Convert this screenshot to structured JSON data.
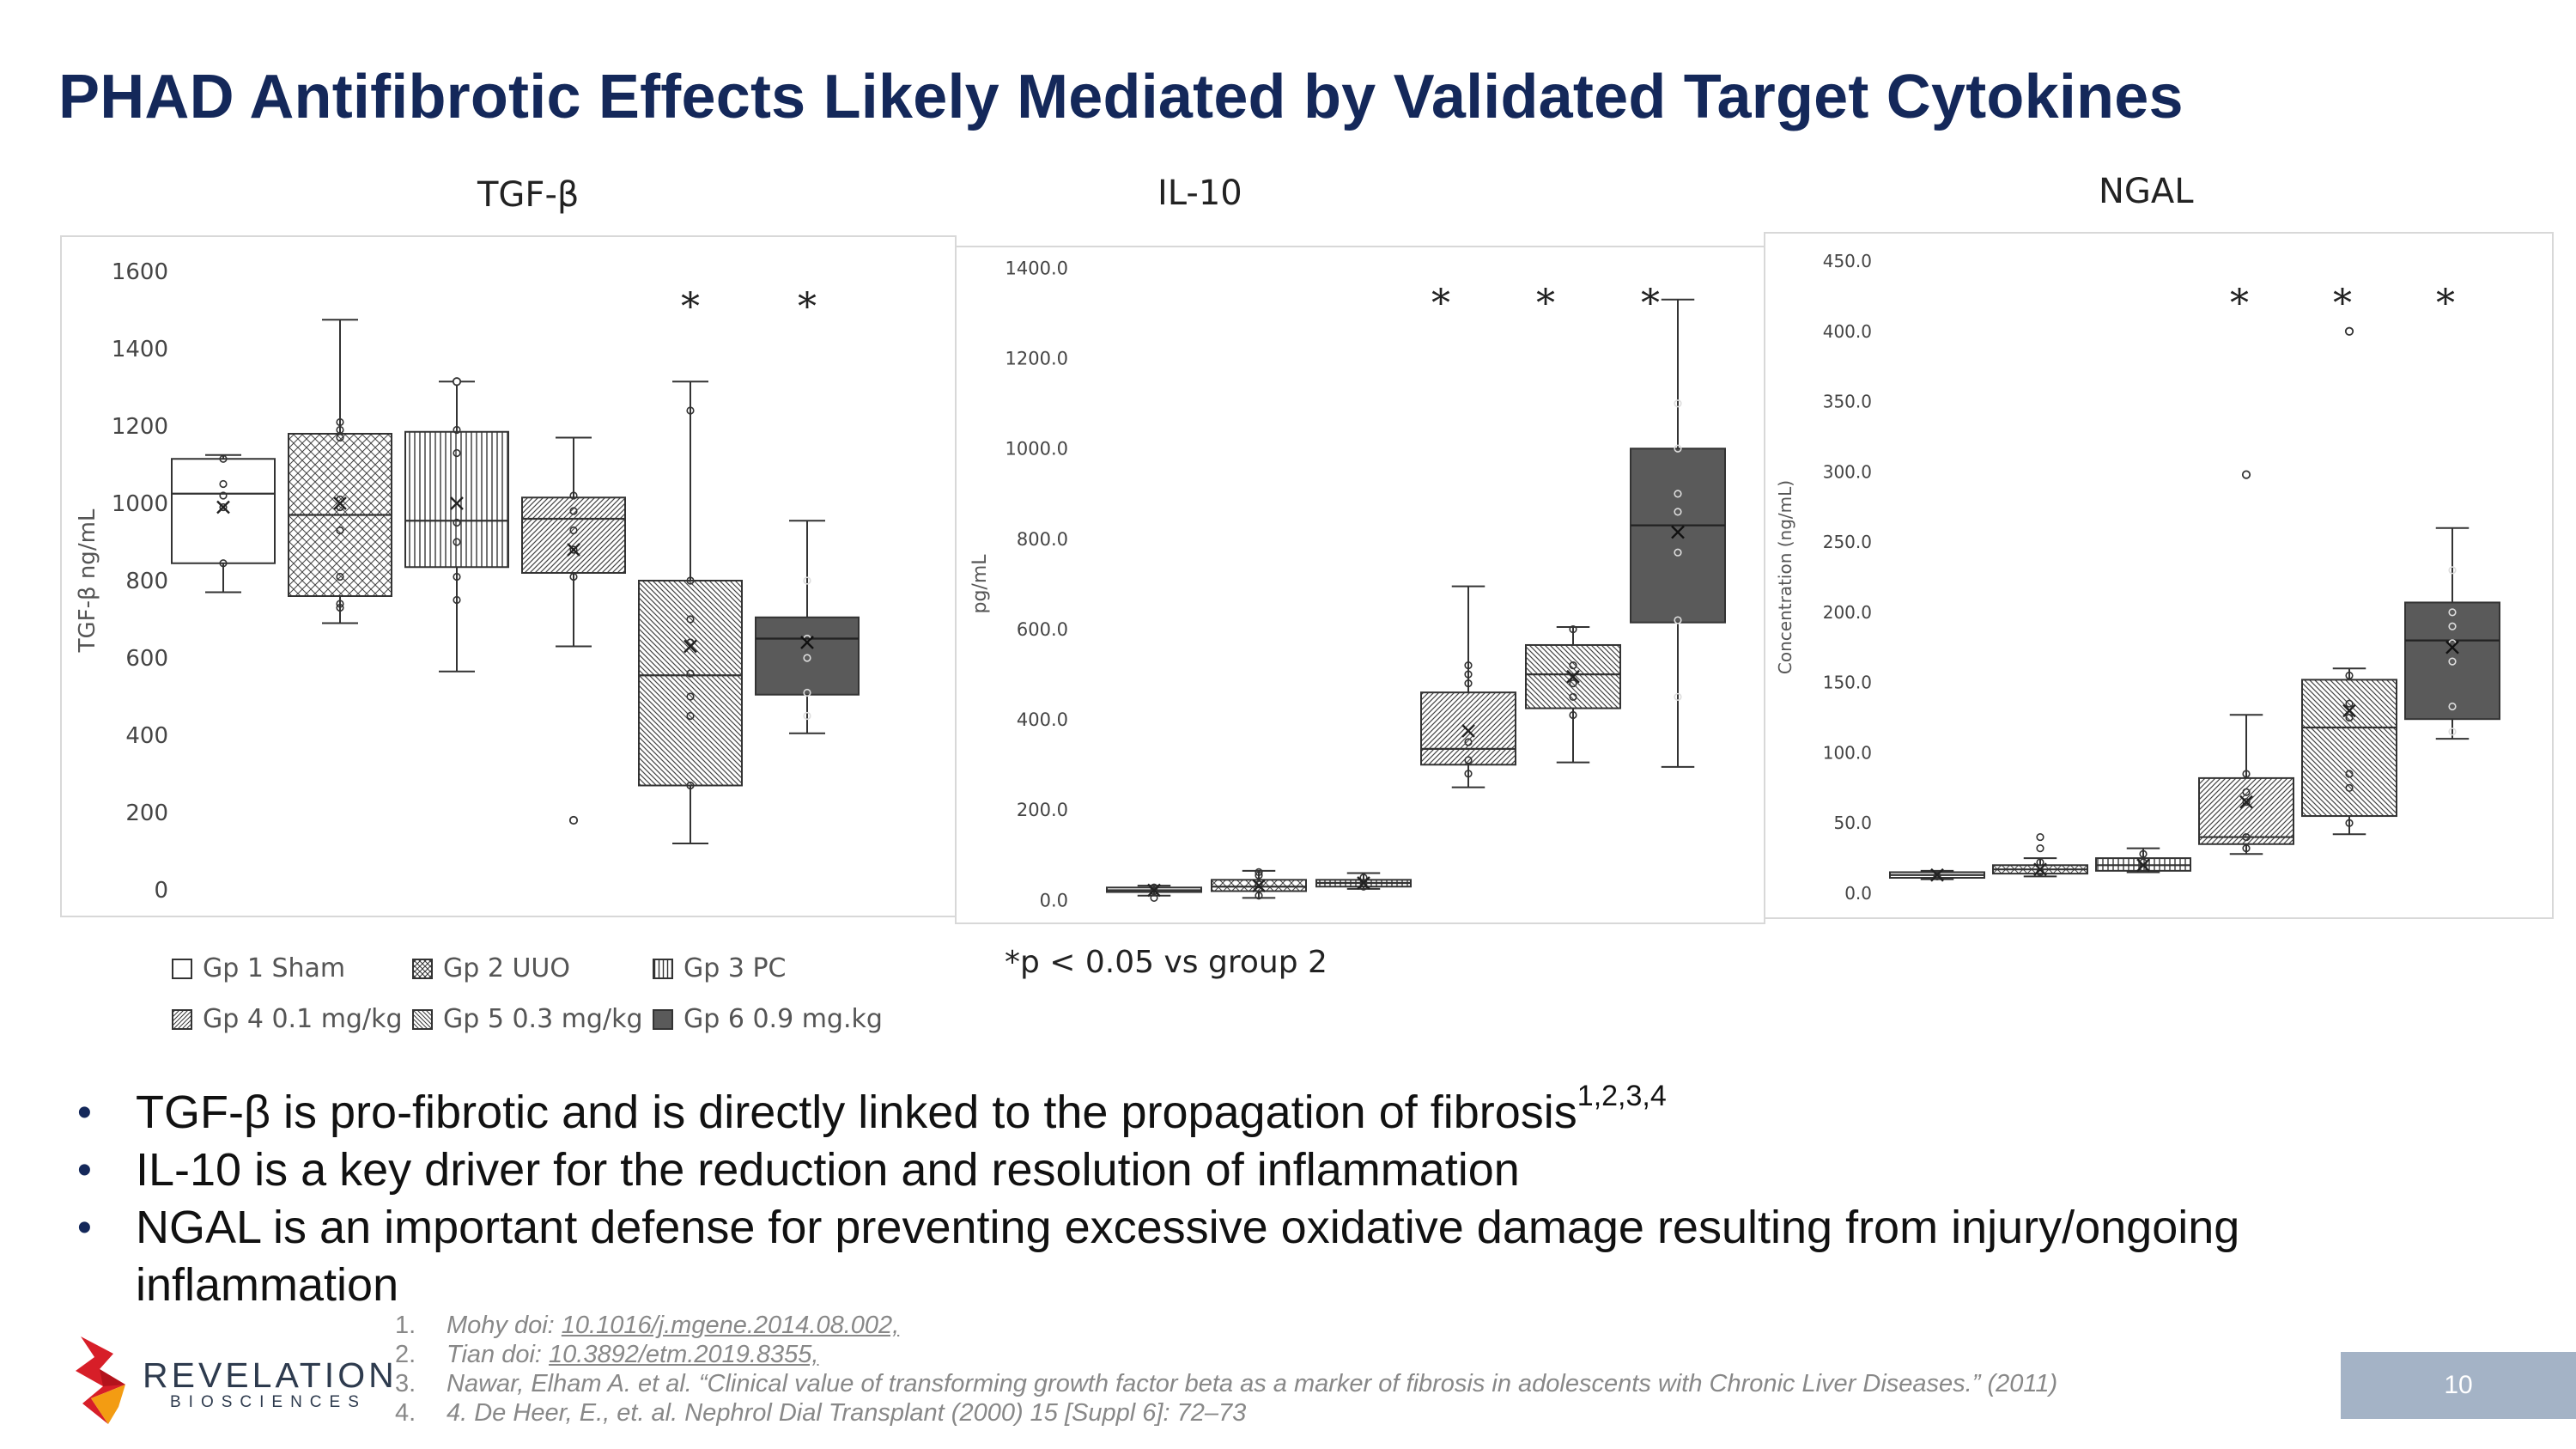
{
  "title": "PHAD Antifibrotic Effects Likely Mediated by Validated Target Cytokines",
  "chart_data": [
    {
      "type": "box",
      "title": "TGF-β",
      "ylabel": "TGF-β ng/mL",
      "ylim": [
        0,
        1600
      ],
      "yticks": [
        "0",
        "200",
        "400",
        "600",
        "800",
        "1000",
        "1200",
        "1400",
        "1600"
      ],
      "significance": [
        "*",
        "*"
      ],
      "significant_groups": [
        4,
        5
      ],
      "groups": [
        {
          "name": "Gp 1 Sham",
          "min": 770,
          "q1": 845,
          "median": 1025,
          "q3": 1115,
          "max": 1125,
          "mean": 990,
          "points": [
            845,
            990,
            1020,
            1050,
            1115
          ],
          "outliers": []
        },
        {
          "name": "Gp 2 UUO",
          "min": 690,
          "q1": 760,
          "median": 970,
          "q3": 1180,
          "max": 1475,
          "mean": 1000,
          "points": [
            730,
            740,
            810,
            930,
            990,
            1010,
            1170,
            1190,
            1210
          ],
          "outliers": []
        },
        {
          "name": "Gp 3 PC",
          "min": 565,
          "q1": 835,
          "median": 955,
          "q3": 1185,
          "max": 1315,
          "mean": 1000,
          "points": [
            750,
            810,
            900,
            950,
            1130,
            1190
          ],
          "outliers": [
            1315
          ]
        },
        {
          "name": "Gp 4 0.1 mg/kg",
          "min": 630,
          "q1": 820,
          "median": 960,
          "q3": 1015,
          "max": 1170,
          "mean": 880,
          "points": [
            810,
            880,
            930,
            980,
            1020
          ],
          "outliers": [
            180
          ]
        },
        {
          "name": "Gp 5 0.3 mg/kg",
          "min": 120,
          "q1": 270,
          "median": 555,
          "q3": 800,
          "max": 1315,
          "mean": 630,
          "points": [
            270,
            450,
            500,
            560,
            640,
            700,
            800,
            1240
          ],
          "outliers": []
        },
        {
          "name": "Gp 6 0.9 mg.kg",
          "min": 405,
          "q1": 505,
          "median": 650,
          "q3": 705,
          "max": 955,
          "mean": 640,
          "points": [
            450,
            510,
            600,
            650,
            800
          ],
          "outliers": []
        }
      ]
    },
    {
      "type": "box",
      "title": "IL-10",
      "ylabel": "pg/mL",
      "ylim": [
        0,
        1400
      ],
      "yticks": [
        "0.0",
        "200.0",
        "400.0",
        "600.0",
        "800.0",
        "1000.0",
        "1200.0",
        "1400.0"
      ],
      "significance": [
        "*",
        "*",
        "*"
      ],
      "significant_groups": [
        3,
        4,
        5
      ],
      "groups": [
        {
          "name": "Gp 1 Sham",
          "min": 10,
          "q1": 18,
          "median": 22,
          "q3": 28,
          "max": 32,
          "mean": 22,
          "points": [
            5,
            20,
            28
          ],
          "outliers": []
        },
        {
          "name": "Gp 2 UUO",
          "min": 5,
          "q1": 20,
          "median": 30,
          "q3": 45,
          "max": 65,
          "mean": 32,
          "points": [
            10,
            25,
            35,
            55,
            62
          ],
          "outliers": []
        },
        {
          "name": "Gp 3 PC",
          "min": 25,
          "q1": 30,
          "median": 38,
          "q3": 45,
          "max": 60,
          "mean": 38,
          "points": [
            30,
            38,
            50
          ],
          "outliers": []
        },
        {
          "name": "Gp 4 0.1 mg/kg",
          "min": 250,
          "q1": 300,
          "median": 335,
          "q3": 460,
          "max": 695,
          "mean": 375,
          "points": [
            280,
            310,
            350,
            480,
            500,
            520
          ],
          "outliers": []
        },
        {
          "name": "Gp 5 0.3 mg/kg",
          "min": 305,
          "q1": 425,
          "median": 500,
          "q3": 565,
          "max": 605,
          "mean": 495,
          "points": [
            410,
            450,
            480,
            520,
            600
          ],
          "outliers": []
        },
        {
          "name": "Gp 6 0.9 mg.kg",
          "min": 295,
          "q1": 615,
          "median": 830,
          "q3": 1000,
          "max": 1330,
          "mean": 815,
          "points": [
            450,
            620,
            770,
            860,
            900,
            1000,
            1100
          ],
          "outliers": []
        }
      ]
    },
    {
      "type": "box",
      "title": "NGAL",
      "ylabel": "Concentration (ng/mL)",
      "ylim": [
        0,
        450
      ],
      "yticks": [
        "0.0",
        "50.0",
        "100.0",
        "150.0",
        "200.0",
        "250.0",
        "300.0",
        "350.0",
        "400.0",
        "450.0"
      ],
      "significance": [
        "*",
        "*",
        "*"
      ],
      "significant_groups": [
        3,
        4,
        5
      ],
      "groups": [
        {
          "name": "Gp 1 Sham",
          "min": 10,
          "q1": 11,
          "median": 13,
          "q3": 15,
          "max": 16,
          "mean": 13,
          "points": [
            12
          ],
          "outliers": []
        },
        {
          "name": "Gp 2 UUO",
          "min": 12,
          "q1": 14,
          "median": 17,
          "q3": 20,
          "max": 25,
          "mean": 17,
          "points": [
            15,
            22,
            32,
            40
          ],
          "outliers": []
        },
        {
          "name": "Gp 3 PC",
          "min": 15,
          "q1": 16,
          "median": 20,
          "q3": 25,
          "max": 32,
          "mean": 20,
          "points": [
            18,
            22,
            28
          ],
          "outliers": []
        },
        {
          "name": "Gp 4 0.1 mg/kg",
          "min": 28,
          "q1": 35,
          "median": 40,
          "q3": 82,
          "max": 127,
          "mean": 65,
          "points": [
            32,
            40,
            65,
            72,
            85
          ],
          "outliers": [
            298
          ]
        },
        {
          "name": "Gp 5 0.3 mg/kg",
          "min": 42,
          "q1": 55,
          "median": 118,
          "q3": 152,
          "max": 160,
          "mean": 130,
          "points": [
            50,
            75,
            85,
            125,
            135,
            155
          ],
          "outliers": [
            400
          ]
        },
        {
          "name": "Gp 6 0.9 mg.kg",
          "min": 110,
          "q1": 124,
          "median": 180,
          "q3": 207,
          "max": 260,
          "mean": 175,
          "points": [
            115,
            133,
            165,
            178,
            190,
            200,
            230
          ],
          "outliers": []
        }
      ]
    }
  ],
  "legend": [
    {
      "label": "Gp 1 Sham",
      "pattern": "white"
    },
    {
      "label": "Gp 2 UUO",
      "pattern": "crosshatch"
    },
    {
      "label": "Gp 3 PC",
      "pattern": "vertical"
    },
    {
      "label": "Gp 4 0.1 mg/kg",
      "pattern": "diag-right"
    },
    {
      "label": "Gp 5 0.3 mg/kg",
      "pattern": "diag-left"
    },
    {
      "label": "Gp 6 0.9 mg.kg",
      "pattern": "solid"
    }
  ],
  "significance_note": "*p < 0.05 vs group 2",
  "bullets": [
    {
      "text": "TGF-β is pro-fibrotic and is directly linked to the propagation of fibrosis",
      "sup": "1,2,3,4"
    },
    {
      "text": "IL-10 is a key driver for the reduction and resolution of inflammation",
      "sup": ""
    },
    {
      "text": "NGAL is an important defense for preventing excessive oxidative damage resulting from injury/ongoing inflammation",
      "sup": ""
    }
  ],
  "references": [
    {
      "num": "1.",
      "prefix": "Mohy doi: ",
      "link": "10.1016/j.mgene.2014.08.002,",
      "suffix": ""
    },
    {
      "num": "2.",
      "prefix": "Tian doi: ",
      "link": "10.3892/etm.2019.8355,",
      "suffix": ""
    },
    {
      "num": "3.",
      "prefix": "Nawar, Elham A. et al. “Clinical value of transforming growth factor beta as a marker of fibrosis in adolescents with Chronic Liver Diseases.” (2011)",
      "link": "",
      "suffix": ""
    },
    {
      "num": "4.",
      "prefix": "4. De Heer, E., et. al. Nephrol Dial Transplant (2000) 15 [Suppl 6]: 72–73",
      "link": "",
      "suffix": ""
    }
  ],
  "logo": {
    "name": "REVELATION",
    "sub": "BIOSCIENCES"
  },
  "page_number": "10",
  "colors": {
    "title": "#14285a",
    "dark_box": "#5a5a5a",
    "page_box": "#a4b3c6"
  }
}
